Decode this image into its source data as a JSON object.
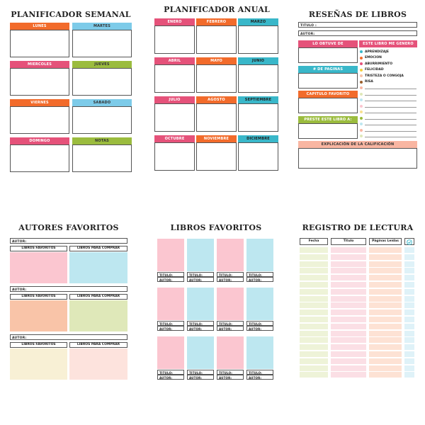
{
  "colors": {
    "orange": "#f26b2b",
    "blue": "#7dcbe9",
    "pink": "#e5527a",
    "green": "#9bbc3e",
    "teal": "#39b7c9",
    "salmon": "#f9b6a2",
    "light_pink": "#fbc6d0",
    "light_blue": "#bde7f0",
    "light_peach": "#f9c4a8",
    "light_green": "#dfe8b9",
    "cream": "#f8f0d5",
    "pale_pink": "#fde3dd",
    "row_green": "#eef3d8",
    "row_pink": "#fbdfe5",
    "row_peach": "#fde2d4",
    "row_blue": "#dff2f8"
  },
  "weekly": {
    "title": "PLANIFICADOR SEMANAL",
    "days": [
      {
        "label": "LUNES",
        "color": "orange"
      },
      {
        "label": "MARTES",
        "color": "blue"
      },
      {
        "label": "MIERCOLES",
        "color": "pink"
      },
      {
        "label": "JUEVES",
        "color": "green"
      },
      {
        "label": "VIERNES",
        "color": "orange"
      },
      {
        "label": "SABADO",
        "color": "blue"
      },
      {
        "label": "DOMINGO",
        "color": "pink"
      },
      {
        "label": "NOTAS",
        "color": "green"
      }
    ]
  },
  "annual": {
    "title": "PLANIFICADOR ANUAL",
    "months": [
      {
        "label": "ENERO",
        "color": "pink"
      },
      {
        "label": "FEBRERO",
        "color": "orange"
      },
      {
        "label": "MARZO",
        "color": "teal"
      },
      {
        "label": "ABRIL",
        "color": "pink"
      },
      {
        "label": "MAYO",
        "color": "orange"
      },
      {
        "label": "JUNIO",
        "color": "teal"
      },
      {
        "label": "JULIO",
        "color": "pink"
      },
      {
        "label": "AGOSTO",
        "color": "orange"
      },
      {
        "label": "SEPTIEMBRE",
        "color": "teal"
      },
      {
        "label": "OCTUBRE",
        "color": "pink"
      },
      {
        "label": "NOVIEMBRE",
        "color": "orange"
      },
      {
        "label": "DICIEMBRE",
        "color": "teal"
      }
    ]
  },
  "reviews": {
    "title": "RESEÑAS DE LIBROS",
    "titulo_label": "TITULO :",
    "autor_label": "AUTOR:",
    "got_label": "LO OBTUVE DE",
    "feel_label": "ESTE LIBRO ME GENERO",
    "pages_label": "# DE PAGINAS",
    "chapter_label": "CAPITULO FAVORITO",
    "lend_label": "PRESTE ESTE LIBRO A:",
    "explain_label": "EXPLICACIÓN DE LA CALIFICACIÓN",
    "emotions": [
      {
        "label": "APRENDIZAJE",
        "color": "#39b7c9"
      },
      {
        "label": "EMOCION",
        "color": "#f26b2b"
      },
      {
        "label": "ABURRIMIENTO",
        "color": "#e5527a"
      },
      {
        "label": "FELICIDAD",
        "color": "#f4d03f"
      },
      {
        "label": "TRISTEZA O CONGOJA",
        "color": "#f9c4a8"
      },
      {
        "label": "RISA",
        "color": "#9b5e2b"
      }
    ],
    "extra_dot_colors": [
      "#f9b6a2",
      "#dfe8b9",
      "#bde7f0",
      "#fbc6d0",
      "#f8e08e",
      "#9bbc3e",
      "#bde7f0",
      "#f9b6a2",
      "#dfe8b9",
      "#fbc6d0",
      "#bde7f0",
      "#f8e08e"
    ]
  },
  "authors": {
    "title": "AUTORES FAVORITOS",
    "autor_label": "AUTOR:",
    "fav_label": "LIBROS FAVORITOS",
    "buy_label": "LIBROS PARA COMPRAR",
    "blocks": [
      {
        "left": "light_pink",
        "right": "light_blue"
      },
      {
        "left": "light_peach",
        "right": "light_green"
      },
      {
        "left": "cream",
        "right": "pale_pink"
      }
    ]
  },
  "favbooks": {
    "title": "LIBROS FAVORITOS",
    "titulo_label": "TITULO:",
    "autor_label": "AUTOR:",
    "covers": [
      "light_pink",
      "light_blue",
      "light_pink",
      "light_blue"
    ]
  },
  "readlog": {
    "title": "REGISTRO DE LECTURA",
    "col_fecha": "Fecha",
    "col_titulo": "Titulo",
    "col_paginas": "Páginas Leídas",
    "check_icon": "check-circle-icon",
    "rows": 19
  }
}
